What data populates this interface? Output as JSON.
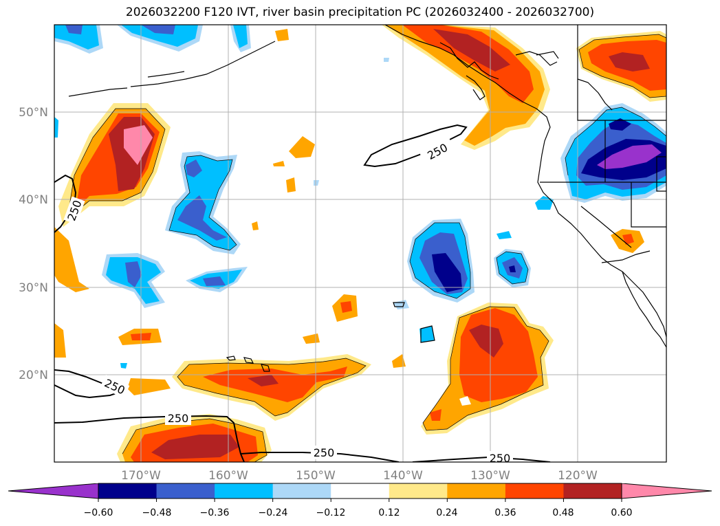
{
  "title": "2026032200 F120 IVT, river basin precipitation PC (2026032400 - 2026032700)",
  "map": {
    "lon_labels": [
      "170°W",
      "160°W",
      "150°W",
      "140°W",
      "130°W",
      "120°W"
    ],
    "lat_labels": [
      "50°N",
      "40°N",
      "30°N",
      "20°N"
    ],
    "contour_level_label": "250"
  },
  "colorbar": {
    "levels": [
      "−0.60",
      "−0.48",
      "−0.36",
      "−0.24",
      "−0.12",
      "0.12",
      "0.24",
      "0.36",
      "0.48",
      "0.60"
    ],
    "colors": [
      "#9932cc",
      "#00008b",
      "#3a5fcd",
      "#00bfff",
      "#add8f7",
      "#ffffff",
      "#ffe98a",
      "#ffa500",
      "#ff4500",
      "#b22222",
      "#ff88aa"
    ]
  }
}
